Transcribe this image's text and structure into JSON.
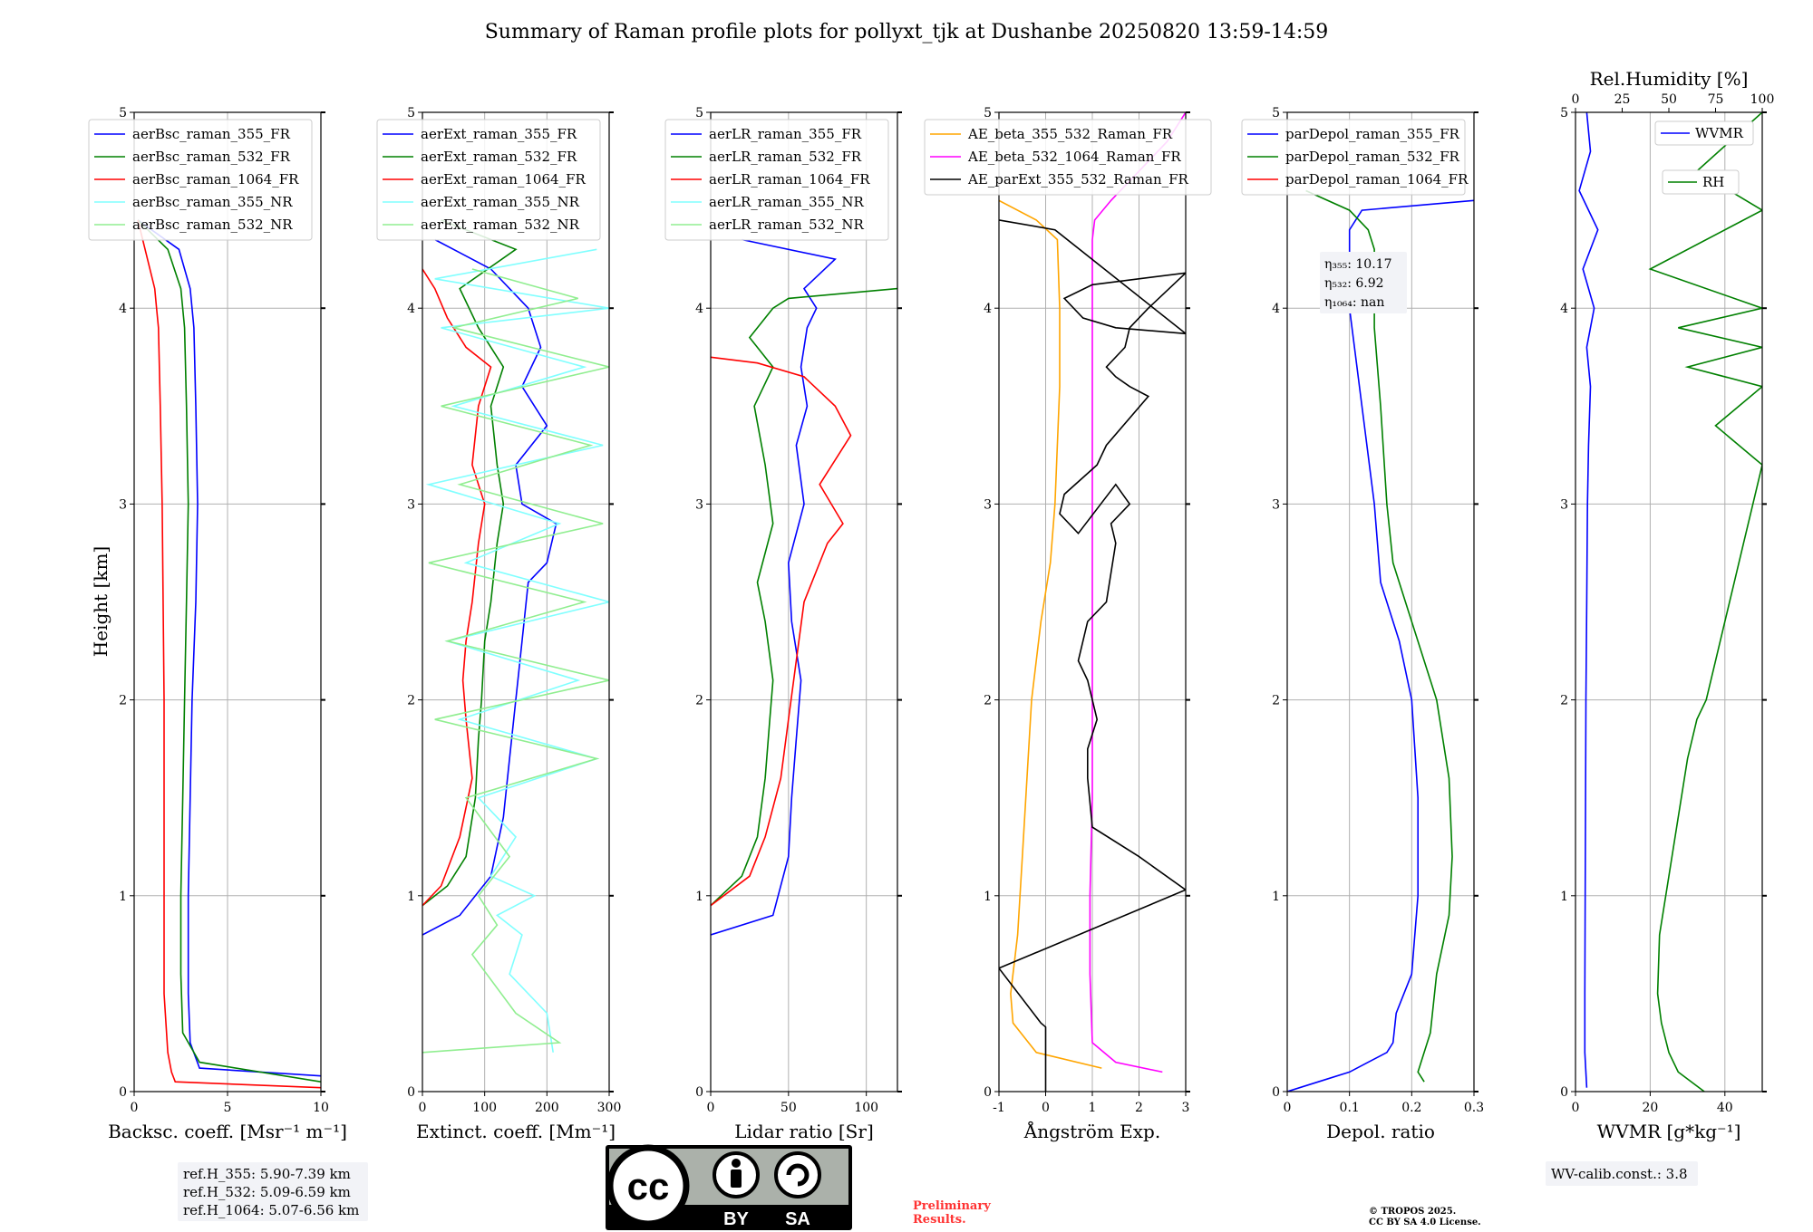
{
  "title": "Summary of Raman profile plots for pollyxt_tjk at Dushanbe 20250820 13:59-14:59",
  "ylabel": "Height [km]",
  "chart_data": [
    {
      "type": "line",
      "ylim": [
        0,
        5
      ],
      "yticks": [
        0,
        1,
        2,
        3,
        4,
        5
      ],
      "xlim": [
        0,
        10
      ],
      "xticks": [
        0,
        5,
        10
      ],
      "xlabel": "Backsc. coeff. [Msr⁻¹ m⁻¹]",
      "legend": "top-left",
      "series": [
        {
          "name": "aerBsc_raman_355_FR",
          "color": "#0000ff",
          "x": [
            10,
            3.5,
            3,
            2.9,
            2.9,
            3.0,
            3.1,
            3.3,
            3.4,
            3.3,
            3.2,
            3.0,
            2.4,
            0.2
          ],
          "y": [
            0.08,
            0.12,
            0.25,
            0.5,
            1.0,
            1.5,
            2.0,
            2.5,
            3.0,
            3.5,
            3.9,
            4.1,
            4.3,
            4.45
          ]
        },
        {
          "name": "aerBsc_raman_532_FR",
          "color": "#008000",
          "x": [
            10,
            3.5,
            2.6,
            2.5,
            2.5,
            2.6,
            2.7,
            2.8,
            2.9,
            2.8,
            2.7,
            2.5,
            1.8,
            0.2
          ],
          "y": [
            0.05,
            0.15,
            0.3,
            0.6,
            1.0,
            1.5,
            2.0,
            2.5,
            3.0,
            3.5,
            3.9,
            4.1,
            4.3,
            4.45
          ]
        },
        {
          "name": "aerBsc_raman_1064_FR",
          "color": "#ff0000",
          "x": [
            10,
            2.2,
            2.0,
            1.8,
            1.6,
            1.6,
            1.6,
            1.5,
            1.4,
            1.3,
            1.2,
            1.1,
            0.2
          ],
          "y": [
            0.02,
            0.05,
            0.1,
            0.2,
            0.5,
            1.0,
            2.0,
            3.0,
            3.5,
            3.9,
            4.0,
            4.1,
            4.45
          ]
        },
        {
          "name": "aerBsc_raman_355_NR",
          "color": "#80ffff",
          "x": [],
          "y": []
        },
        {
          "name": "aerBsc_raman_532_NR",
          "color": "#90ee90",
          "x": [],
          "y": []
        }
      ]
    },
    {
      "type": "line",
      "ylim": [
        0,
        5
      ],
      "yticks": [
        0,
        1,
        2,
        3,
        4,
        5
      ],
      "xlim": [
        0,
        300
      ],
      "xticks": [
        0,
        100,
        200,
        300
      ],
      "xlabel": "Extinct. coeff. [Mm⁻¹]",
      "legend": "top-left",
      "series": [
        {
          "name": "aerExt_raman_355_FR",
          "color": "#0000ff",
          "x": [
            0,
            60,
            110,
            130,
            140,
            150,
            160,
            170,
            200,
            215,
            160,
            150,
            200,
            160,
            190,
            170,
            110,
            20
          ],
          "y": [
            0.8,
            0.9,
            1.1,
            1.4,
            1.7,
            2.0,
            2.3,
            2.6,
            2.7,
            2.9,
            3.0,
            3.2,
            3.4,
            3.6,
            3.8,
            4.0,
            4.2,
            4.35
          ]
        },
        {
          "name": "aerExt_raman_532_FR",
          "color": "#008000",
          "x": [
            0,
            40,
            70,
            85,
            90,
            95,
            100,
            110,
            120,
            130,
            120,
            110,
            130,
            90,
            60,
            150,
            30
          ],
          "y": [
            0.95,
            1.05,
            1.2,
            1.5,
            1.8,
            2.0,
            2.3,
            2.5,
            2.8,
            3.0,
            3.2,
            3.5,
            3.7,
            3.9,
            4.1,
            4.3,
            4.45
          ]
        },
        {
          "name": "aerExt_raman_1064_FR",
          "color": "#ff0000",
          "x": [
            0,
            30,
            60,
            80,
            70,
            65,
            70,
            80,
            90,
            100,
            80,
            90,
            110,
            70,
            40,
            20,
            0
          ],
          "y": [
            0.95,
            1.05,
            1.3,
            1.6,
            1.9,
            2.1,
            2.3,
            2.5,
            2.8,
            3.0,
            3.2,
            3.5,
            3.7,
            3.8,
            3.95,
            4.1,
            4.2
          ]
        },
        {
          "name": "aerExt_raman_355_NR",
          "color": "#80ffff",
          "x": [
            210,
            200,
            140,
            160,
            120,
            180,
            110,
            150,
            90,
            280,
            60,
            250,
            40,
            300,
            70,
            220,
            10,
            290,
            50,
            260,
            30,
            300,
            20,
            280
          ],
          "y": [
            0.2,
            0.4,
            0.6,
            0.8,
            0.9,
            1.0,
            1.1,
            1.3,
            1.5,
            1.7,
            1.9,
            2.1,
            2.3,
            2.5,
            2.7,
            2.9,
            3.1,
            3.3,
            3.5,
            3.7,
            3.9,
            4.0,
            4.15,
            4.3
          ]
        },
        {
          "name": "aerExt_raman_532_NR",
          "color": "#90ee90",
          "x": [
            0,
            220,
            150,
            80,
            120,
            90,
            140,
            70,
            280,
            20,
            300,
            40,
            260,
            10,
            290,
            60,
            270,
            30,
            300,
            50,
            250,
            80
          ],
          "y": [
            0.2,
            0.25,
            0.4,
            0.7,
            0.85,
            1.0,
            1.2,
            1.5,
            1.7,
            1.9,
            2.1,
            2.3,
            2.5,
            2.7,
            2.9,
            3.1,
            3.3,
            3.5,
            3.7,
            3.9,
            4.05,
            4.2
          ]
        }
      ]
    },
    {
      "type": "line",
      "ylim": [
        0,
        5
      ],
      "yticks": [
        0,
        1,
        2,
        3,
        4,
        5
      ],
      "xlim": [
        0,
        120
      ],
      "xticks": [
        0,
        50,
        100
      ],
      "xlabel": "Lidar ratio [Sr]",
      "legend": "top-left",
      "series": [
        {
          "name": "aerLR_raman_355_FR",
          "color": "#0000ff",
          "x": [
            0,
            40,
            50,
            52,
            55,
            58,
            52,
            50,
            60,
            55,
            62,
            58,
            62,
            68,
            60,
            80,
            20
          ],
          "y": [
            0.8,
            0.9,
            1.2,
            1.5,
            1.8,
            2.1,
            2.4,
            2.7,
            3.0,
            3.3,
            3.5,
            3.7,
            3.9,
            4.0,
            4.1,
            4.25,
            4.35
          ]
        },
        {
          "name": "aerLR_raman_532_FR",
          "color": "#008000",
          "x": [
            0,
            20,
            30,
            35,
            38,
            40,
            35,
            30,
            40,
            35,
            28,
            40,
            25,
            40,
            50,
            120
          ],
          "y": [
            0.95,
            1.1,
            1.3,
            1.6,
            1.9,
            2.1,
            2.4,
            2.6,
            2.9,
            3.2,
            3.5,
            3.7,
            3.85,
            4.0,
            4.05,
            4.1
          ]
        },
        {
          "name": "aerLR_raman_1064_FR",
          "color": "#ff0000",
          "x": [
            0,
            25,
            35,
            45,
            50,
            55,
            60,
            75,
            85,
            70,
            90,
            80,
            60,
            30,
            0
          ],
          "y": [
            0.95,
            1.1,
            1.3,
            1.6,
            1.9,
            2.2,
            2.5,
            2.8,
            2.9,
            3.1,
            3.35,
            3.5,
            3.65,
            3.72,
            3.75
          ]
        },
        {
          "name": "aerLR_raman_355_NR",
          "color": "#80ffff",
          "x": [],
          "y": []
        },
        {
          "name": "aerLR_raman_532_NR",
          "color": "#90ee90",
          "x": [],
          "y": []
        }
      ]
    },
    {
      "type": "line",
      "ylim": [
        0,
        5
      ],
      "yticks": [
        0,
        1,
        2,
        3,
        4,
        5
      ],
      "xlim": [
        -1,
        3
      ],
      "xticks": [
        -1,
        0,
        1,
        2,
        3
      ],
      "xlabel": "Ångström Exp.",
      "legend": "top-right",
      "series": [
        {
          "name": "AE_beta_355_532_Raman_FR",
          "color": "#ffa500",
          "x": [
            1.2,
            -0.2,
            -0.7,
            -0.75,
            -0.6,
            -0.5,
            -0.4,
            -0.3,
            -0.1,
            0.1,
            0.2,
            0.25,
            0.3,
            0.3,
            0.25,
            -0.2,
            -1.0
          ],
          "y": [
            0.12,
            0.2,
            0.35,
            0.5,
            0.8,
            1.2,
            1.6,
            2.0,
            2.4,
            2.7,
            3.0,
            3.3,
            3.6,
            4.0,
            4.35,
            4.45,
            4.55
          ]
        },
        {
          "name": "AE_beta_532_1064_Raman_FR",
          "color": "#ff00ff",
          "x": [
            2.5,
            1.5,
            1.0,
            0.95,
            0.95,
            1.0,
            1.0,
            1.0,
            1.0,
            1.0,
            1.0,
            1.0,
            1.05,
            1.4,
            2.0,
            2.6,
            3.0
          ],
          "y": [
            0.1,
            0.15,
            0.25,
            0.6,
            1.0,
            1.5,
            2.0,
            2.5,
            3.0,
            3.5,
            4.0,
            4.35,
            4.45,
            4.55,
            4.7,
            4.85,
            5.0
          ]
        },
        {
          "name": "AE_parExt_355_532_Raman_FR",
          "color": "#000000",
          "x": [
            0,
            0,
            -0.1,
            -1.0,
            3.0,
            2.0,
            1.0,
            0.9,
            0.9,
            1.1,
            1.0,
            0.9,
            0.7,
            0.9,
            1.3,
            1.5,
            1.4,
            1.8,
            1.5,
            0.7,
            0.3,
            0.4,
            1.1,
            1.3,
            2.2,
            1.8,
            1.5,
            1.3,
            1.7,
            1.8,
            2.2,
            3.0,
            1.0,
            0.4,
            0.8,
            1.5,
            3.0,
            0.2,
            -1.0
          ],
          "y": [
            0.0,
            0.33,
            0.35,
            0.63,
            1.03,
            1.2,
            1.35,
            1.6,
            1.75,
            1.9,
            2.0,
            2.1,
            2.2,
            2.4,
            2.5,
            2.8,
            2.9,
            3.0,
            3.1,
            2.85,
            2.95,
            3.05,
            3.2,
            3.3,
            3.55,
            3.6,
            3.65,
            3.7,
            3.8,
            3.9,
            4.0,
            4.18,
            4.12,
            4.05,
            3.95,
            3.9,
            3.87,
            4.4,
            4.45
          ]
        }
      ]
    },
    {
      "type": "line",
      "ylim": [
        0,
        5
      ],
      "yticks": [
        0,
        1,
        2,
        3,
        4,
        5
      ],
      "xlim": [
        0,
        0.3
      ],
      "xticks": [
        0,
        0.1,
        0.2,
        0.3
      ],
      "xlabel": "Depol. ratio",
      "legend": "top-left",
      "series": [
        {
          "name": "parDepol_raman_355_FR",
          "color": "#0000ff",
          "x": [
            0.0,
            0.05,
            0.1,
            0.13,
            0.16,
            0.17,
            0.175,
            0.2,
            0.21,
            0.21,
            0.2,
            0.18,
            0.15,
            0.14,
            0.12,
            0.1,
            0.1,
            0.1,
            0.12,
            0.3
          ],
          "y": [
            0.0,
            0.05,
            0.1,
            0.15,
            0.2,
            0.25,
            0.4,
            0.6,
            1.0,
            1.5,
            2.0,
            2.3,
            2.6,
            3.0,
            3.5,
            4.0,
            4.2,
            4.4,
            4.5,
            4.55
          ]
        },
        {
          "name": "parDepol_raman_532_FR",
          "color": "#008000",
          "x": [
            0.22,
            0.21,
            0.23,
            0.24,
            0.26,
            0.265,
            0.26,
            0.24,
            0.2,
            0.17,
            0.16,
            0.15,
            0.14,
            0.14,
            0.14,
            0.13,
            0.1,
            0.03
          ],
          "y": [
            0.05,
            0.1,
            0.3,
            0.6,
            0.9,
            1.2,
            1.6,
            2.0,
            2.4,
            2.7,
            3.0,
            3.5,
            3.9,
            4.1,
            4.3,
            4.4,
            4.5,
            4.6
          ]
        },
        {
          "name": "parDepol_raman_1064_FR",
          "color": "#ff0000",
          "x": [],
          "y": []
        }
      ],
      "annotations": [
        "η₃₅₅: 10.17",
        "η₅₃₂: 6.92",
        "η₁₀₆₄: nan"
      ]
    },
    {
      "type": "line",
      "ylim": [
        0,
        5
      ],
      "yticks": [
        0,
        1,
        2,
        3,
        4,
        5
      ],
      "xlim": [
        0,
        50
      ],
      "xticks": [
        0,
        20,
        40
      ],
      "xlabel": "WVMR [g*kg⁻¹]",
      "x2label": "Rel.Humidity [%]",
      "x2lim": [
        0,
        100
      ],
      "x2ticks": [
        0,
        25,
        50,
        75,
        100
      ],
      "series": [
        {
          "name": "WVMR",
          "axis": "x",
          "color": "#0000ff",
          "x": [
            3,
            2.5,
            2.5,
            2.6,
            2.7,
            2.8,
            3.0,
            3.2,
            3.5,
            4.0,
            3.0,
            5.0,
            2.0,
            6.0,
            1.0,
            4.0,
            3.0
          ],
          "y": [
            0.02,
            0.2,
            0.5,
            1.0,
            1.5,
            2.0,
            2.5,
            3.0,
            3.3,
            3.6,
            3.8,
            4.0,
            4.2,
            4.4,
            4.6,
            4.8,
            5.0
          ]
        },
        {
          "name": "RH",
          "axis": "x2",
          "color": "#008000",
          "x": [
            69,
            55,
            50,
            46,
            44,
            45,
            50,
            55,
            60,
            65,
            70,
            75,
            80,
            85,
            90,
            95,
            100,
            75,
            100,
            60,
            100,
            55,
            100,
            40,
            100,
            65,
            100
          ],
          "y": [
            0.0,
            0.1,
            0.2,
            0.35,
            0.5,
            0.8,
            1.1,
            1.4,
            1.7,
            1.9,
            2.0,
            2.2,
            2.4,
            2.6,
            2.8,
            3.0,
            3.2,
            3.4,
            3.6,
            3.7,
            3.8,
            3.9,
            4.0,
            4.2,
            4.5,
            4.7,
            5.0
          ]
        }
      ]
    }
  ],
  "footer": {
    "ref_lines": [
      "ref.H_355: 5.90-7.39 km",
      "ref.H_532: 5.09-6.59 km",
      "ref.H_1064: 5.07-6.56 km"
    ],
    "cc_by": "BY",
    "cc_sa": "SA",
    "cc_mark": "cc",
    "prelim_1": "Preliminary",
    "prelim_2": "Results.",
    "copyright_1": "© TROPOS 2025.",
    "copyright_2": "CC BY SA 4.0 License.",
    "wv_calib": "WV-calib.const.: 3.8"
  }
}
